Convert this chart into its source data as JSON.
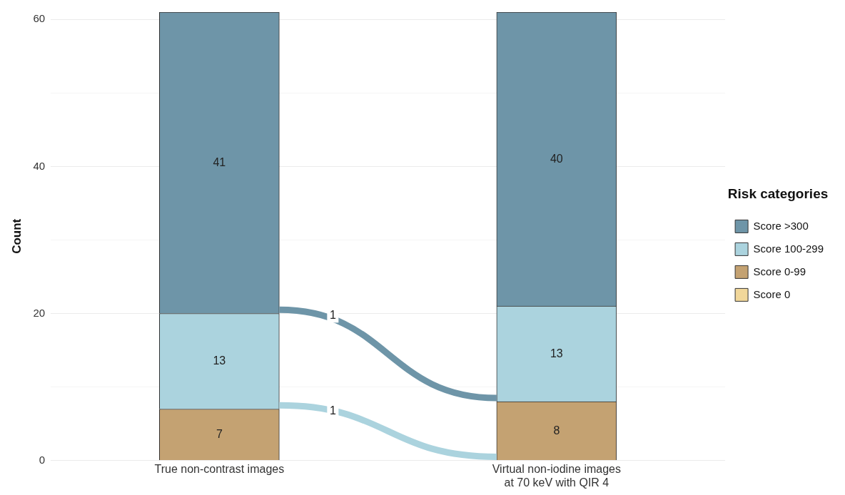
{
  "chart_data": {
    "type": "bar",
    "stacked": true,
    "ylabel": "Count",
    "legend_title": "Risk categories",
    "legend": "right",
    "grid": "y",
    "categories": [
      "True non-contrast images",
      "Virtual non-iodine images\nat 70 keV with QIR 4"
    ],
    "ylim": [
      0,
      61
    ],
    "yticks": [
      0,
      {
        "value": 10,
        "label": null
      },
      20,
      {
        "value": 30,
        "label": null
      },
      40,
      {
        "value": 50,
        "label": null
      },
      60
    ],
    "series": [
      {
        "name": "Score 0",
        "color": "#f1d79a",
        "values": [
          0,
          0
        ],
        "value_labels": [
          null,
          null
        ]
      },
      {
        "name": "Score 0-99",
        "color": "#c4a272",
        "values": [
          7,
          8
        ],
        "value_labels": [
          "7",
          "8"
        ]
      },
      {
        "name": "Score 100-299",
        "color": "#abd3de",
        "values": [
          13,
          13
        ],
        "value_labels": [
          "13",
          "13"
        ]
      },
      {
        "name": "Score >300",
        "color": "#6e95a8",
        "values": [
          41,
          40
        ],
        "value_labels": [
          "41",
          "40"
        ]
      }
    ],
    "annotations": [
      "1",
      "1"
    ]
  }
}
